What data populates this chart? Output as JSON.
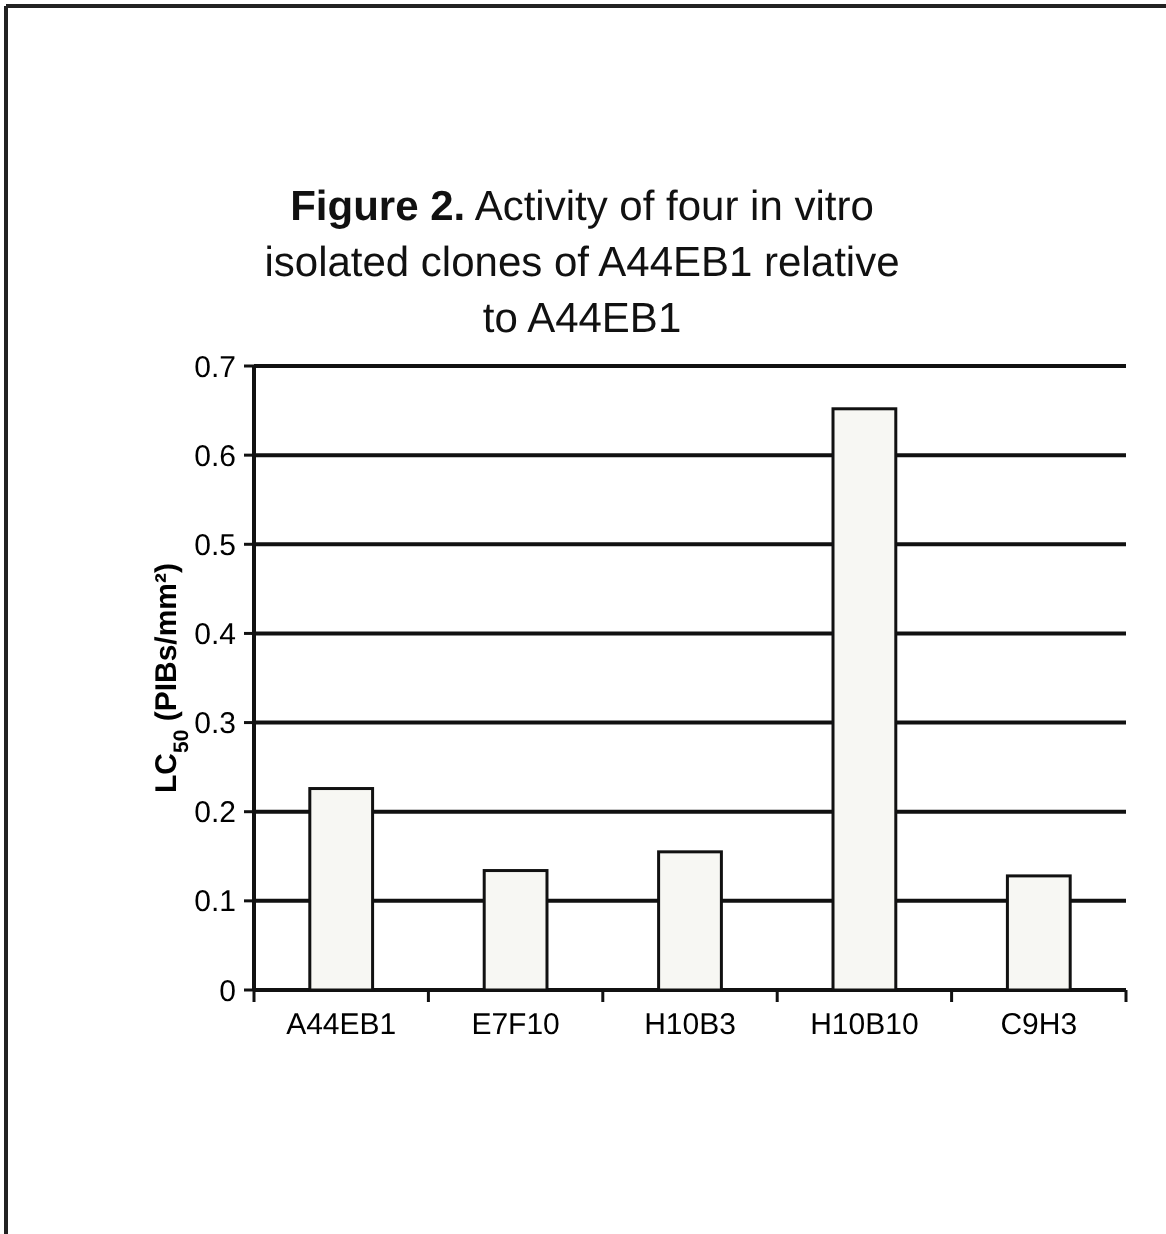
{
  "chart_data": {
    "type": "bar",
    "title": "Figure 2. Activity of four in vitro isolated clones of A44EB1 relative to A44EB1",
    "ylabel": "LC$_{50}$ (PIBs/mm²)",
    "categories": [
      "A44EB1",
      "E7F10",
      "H10B3",
      "H10B10",
      "C9H3"
    ],
    "values": [
      0.226,
      0.134,
      0.155,
      0.652,
      0.128
    ],
    "color": "#f7f7f3",
    "ylim": [
      0,
      0.7
    ],
    "yticks": [
      0,
      0.1,
      0.2,
      0.3,
      0.4,
      0.5,
      0.6,
      0.7
    ],
    "grid": "y"
  }
}
